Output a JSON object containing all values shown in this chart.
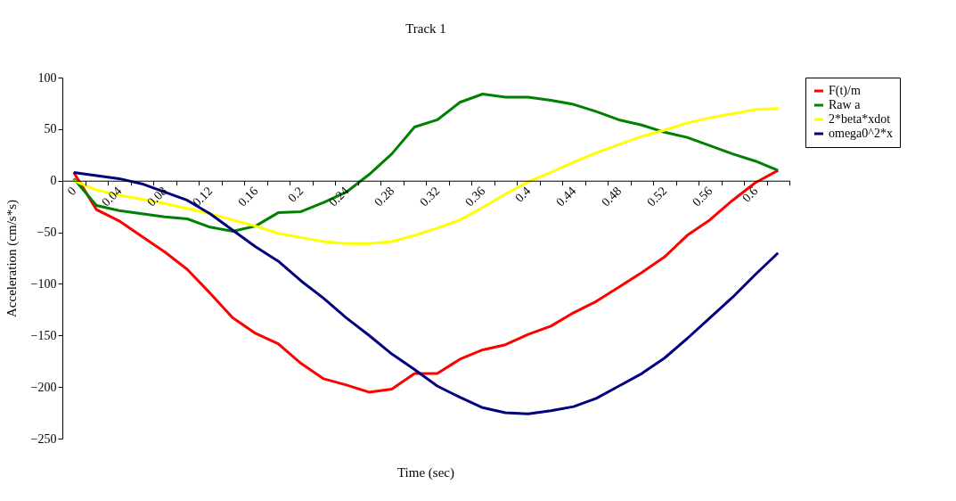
{
  "chart_data": {
    "type": "line",
    "title": "Track 1",
    "xlabel": "Time (sec)",
    "ylabel": "Acceleration (cm/s*s)",
    "categories": [
      "0",
      null,
      "0.04",
      null,
      "0.08",
      null,
      "0.12",
      null,
      "0.16",
      null,
      "0.2",
      null,
      "0.24",
      null,
      "0.28",
      null,
      "0.32",
      null,
      "0.36",
      null,
      "0.4",
      null,
      "0.44",
      null,
      "0.48",
      null,
      "0.52",
      null,
      "0.56",
      null,
      "0.6",
      null
    ],
    "ylim": [
      -250,
      100
    ],
    "yticks": [
      -250,
      -200,
      -150,
      -100,
      -50,
      0,
      50,
      100
    ],
    "grid": false,
    "legend": "right",
    "marker": "none",
    "line_style": "solid",
    "series": [
      {
        "name": "F(t)/m",
        "color": "#ff0000",
        "values": [
          8,
          -28,
          -39,
          -54,
          -69,
          -86,
          -109,
          -133,
          -148,
          -158,
          -177,
          -192,
          -198,
          -205,
          -202,
          -187,
          -187,
          -173,
          -164,
          -159,
          -149,
          -141,
          -128,
          -117,
          -103,
          -89,
          -74,
          -53,
          -38,
          -19,
          -2,
          10
        ]
      },
      {
        "name": "Raw a",
        "color": "#008000",
        "values": [
          2,
          -24,
          -29,
          -32,
          -35,
          -37,
          -45,
          -49,
          -44,
          -31,
          -30,
          -21,
          -11,
          6,
          26,
          52,
          59,
          76,
          84,
          81,
          81,
          78,
          74,
          67,
          59,
          54,
          47,
          42,
          34,
          26,
          19,
          10
        ]
      },
      {
        "name": "2*beta*xdot",
        "color": "#ffff00",
        "values": [
          0,
          -9,
          -14,
          -18,
          -22,
          -27,
          -32,
          -38,
          -44,
          -51,
          -55,
          -59,
          -61,
          -61,
          -59,
          -53,
          -46,
          -38,
          -26,
          -13,
          -1,
          8,
          18,
          27,
          35,
          43,
          49,
          56,
          61,
          65,
          69,
          70
        ]
      },
      {
        "name": "omega0^2*x",
        "color": "#000080",
        "values": [
          8,
          5,
          2,
          -3,
          -11,
          -19,
          -32,
          -48,
          -64,
          -78,
          -97,
          -114,
          -133,
          -150,
          -168,
          -183,
          -199,
          -210,
          -220,
          -225,
          -226,
          -223,
          -219,
          -211,
          -199,
          -187,
          -172,
          -153,
          -133,
          -113,
          -91,
          -70
        ]
      }
    ]
  }
}
